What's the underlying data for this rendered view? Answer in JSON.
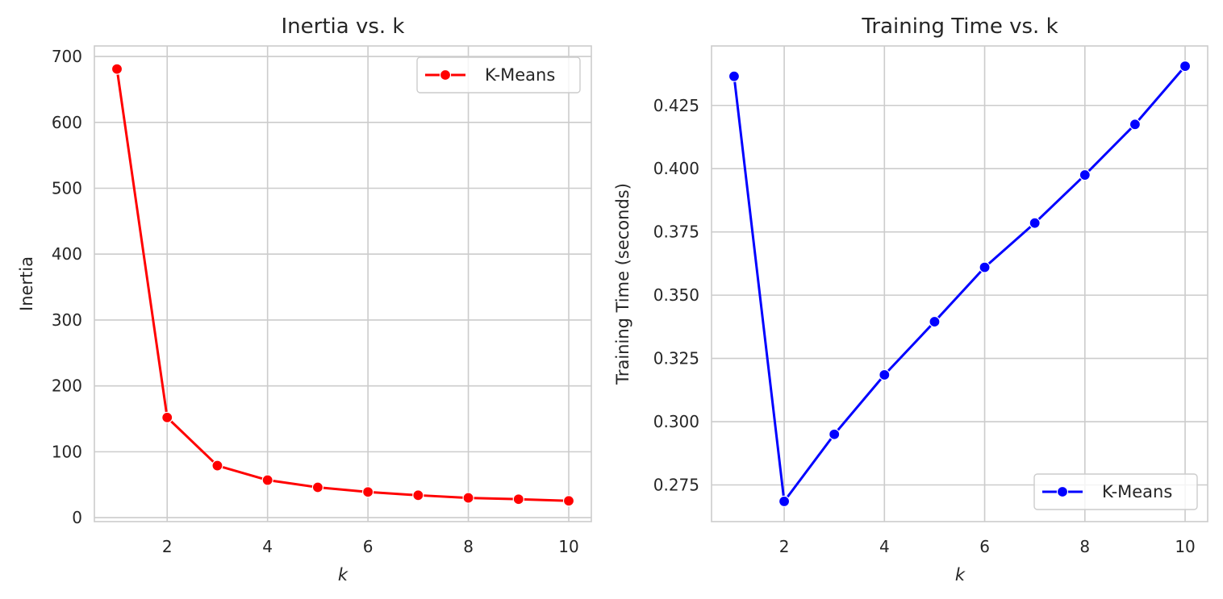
{
  "chart_data": [
    {
      "type": "line",
      "title": "Inertia vs. k",
      "xlabel": "k",
      "ylabel": "Inertia",
      "x": [
        1,
        2,
        3,
        4,
        5,
        6,
        7,
        8,
        9,
        10
      ],
      "xlim": [
        0.55,
        10.45
      ],
      "ylim": [
        -6,
        716
      ],
      "xticks": [
        2,
        4,
        6,
        8,
        10
      ],
      "yticks": [
        0,
        100,
        200,
        300,
        400,
        500,
        600,
        700
      ],
      "ytick_labels": [
        "0",
        "100",
        "200",
        "300",
        "400",
        "500",
        "600",
        "700"
      ],
      "grid": true,
      "legend_position": "upper right",
      "series": [
        {
          "name": "K-Means",
          "color": "#ff0000",
          "marker": "circle",
          "values": [
            681,
            152,
            79,
            57,
            46,
            39,
            34,
            30,
            28,
            25.5
          ]
        }
      ]
    },
    {
      "type": "line",
      "title": "Training Time vs. k",
      "xlabel": "k",
      "ylabel": "Training Time (seconds)",
      "x": [
        1,
        2,
        3,
        4,
        5,
        6,
        7,
        8,
        9,
        10
      ],
      "xlim": [
        0.55,
        10.45
      ],
      "ylim": [
        0.2605,
        0.4485
      ],
      "xticks": [
        2,
        4,
        6,
        8,
        10
      ],
      "yticks": [
        0.275,
        0.3,
        0.325,
        0.35,
        0.375,
        0.4,
        0.425
      ],
      "ytick_labels": [
        "0.275",
        "0.300",
        "0.325",
        "0.350",
        "0.375",
        "0.400",
        "0.425"
      ],
      "grid": true,
      "legend_position": "lower right",
      "series": [
        {
          "name": "K-Means",
          "color": "#0000ff",
          "marker": "circle",
          "values": [
            0.4365,
            0.2685,
            0.295,
            0.3185,
            0.3395,
            0.361,
            0.3785,
            0.3975,
            0.4175,
            0.4405
          ]
        }
      ]
    }
  ]
}
